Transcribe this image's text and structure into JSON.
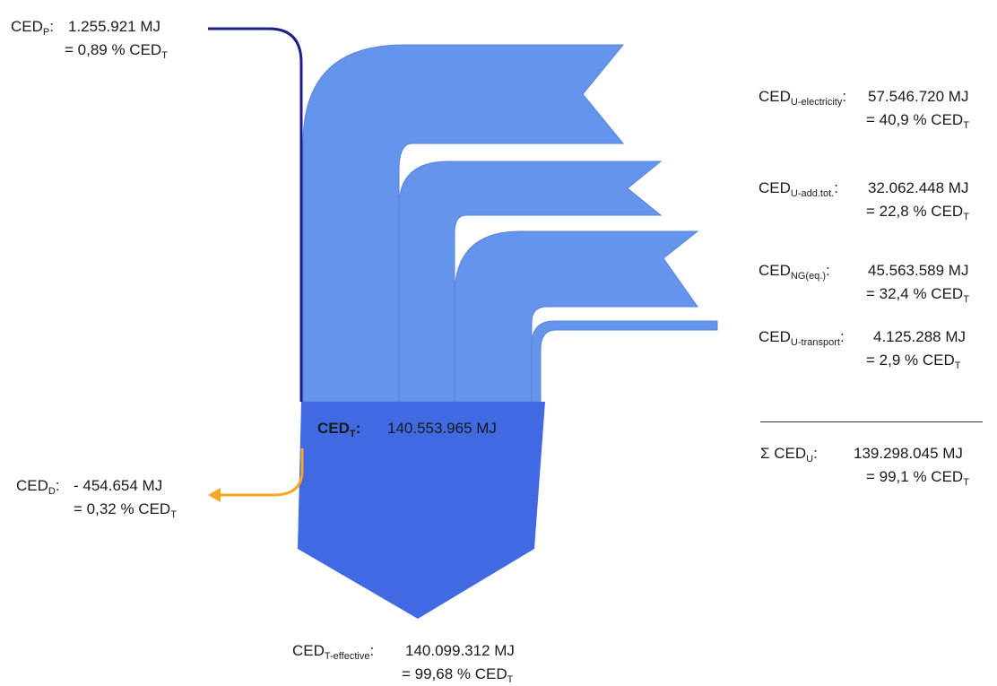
{
  "colors": {
    "flow_light": "#6494eb",
    "flow_dark": "#4169e1",
    "flow_edge": "#5a84d8",
    "line_navy": "#1a1f8c",
    "line_orange": "#f5a623"
  },
  "primary": {
    "label": "CED",
    "sub": "P",
    "value": "1.255.921  MJ",
    "percent": "= 0,89 % CED",
    "percent_sub": "T"
  },
  "deduction": {
    "label": "CED",
    "sub": "D",
    "value": "- 454.654 MJ",
    "percent": "= 0,32 % CED",
    "percent_sub": "T"
  },
  "total": {
    "label": "CED",
    "sub": "T",
    "colon": ":",
    "value": "140.553.965 MJ"
  },
  "effective": {
    "label": "CED",
    "sub": "T-effective",
    "value": "140.099.312 MJ",
    "percent": "= 99,68  % CED",
    "percent_sub": "T"
  },
  "uses": [
    {
      "label": "CED",
      "sub": "U-electricity",
      "value": "57.546.720 MJ",
      "percent": "= 40,9 % CED",
      "percent_sub": "T"
    },
    {
      "label": "CED",
      "sub": "U-add.tot.",
      "value": "32.062.448  MJ",
      "percent": "= 22,8 % CED",
      "percent_sub": "T"
    },
    {
      "label": "CED",
      "sub": "NG(eq.)",
      "value": "45.563.589  MJ",
      "percent": "= 32,4 % CED",
      "percent_sub": "T"
    },
    {
      "label": "CED",
      "sub": "U-transport",
      "value": "4.125.288 MJ",
      "percent": "=  2,9 % CED",
      "percent_sub": "T"
    }
  ],
  "sum": {
    "label": "Σ CED",
    "sub": "U",
    "value": "139.298.045  MJ",
    "percent": "= 99,1 % CED",
    "percent_sub": "T"
  }
}
